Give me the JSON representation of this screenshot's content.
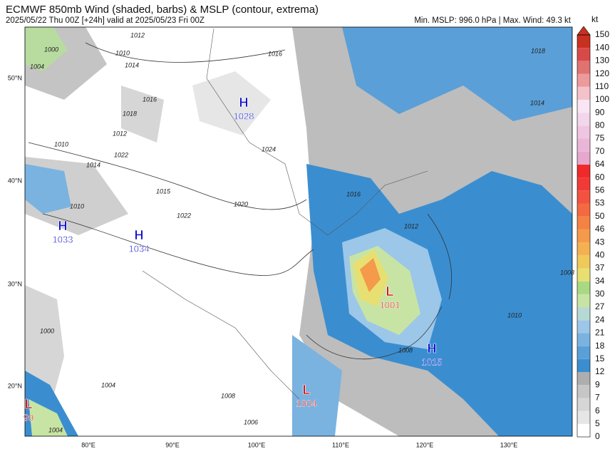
{
  "header": {
    "title": "ECMWF 850mb Wind (shaded, barbs) & MSLP (contour, extrema)",
    "subtitle": "2025/05/22 Thu 00Z [+24h] valid at 2025/05/23 Fri 00Z",
    "stats": "Min. MSLP: 996.0 hPa | Max. Wind: 49.3 kt"
  },
  "colorbar": {
    "unit": "kt",
    "levels": [
      0,
      5,
      6,
      7,
      9,
      12,
      15,
      18,
      21,
      24,
      27,
      30,
      34,
      37,
      40,
      43,
      46,
      50,
      53,
      56,
      60,
      64,
      70,
      75,
      80,
      90,
      100,
      110,
      120,
      130,
      140,
      150
    ],
    "colors": [
      "#ffffff",
      "#e6e6e6",
      "#d6d6d6",
      "#c6c6c6",
      "#aeaeae",
      "#3a8ed0",
      "#5a9fd8",
      "#7ab3e0",
      "#9cc7e8",
      "#b6d9d6",
      "#c8e4a4",
      "#a9d982",
      "#e8df72",
      "#f0c95a",
      "#f4b152",
      "#f49a4a",
      "#f48242",
      "#f46a40",
      "#f45240",
      "#f03a38",
      "#f02a2a",
      "#e6a8cc",
      "#eab6d8",
      "#efc6e2",
      "#f2d6ec",
      "#f8e6f4",
      "#f4c2ca",
      "#ec9a9a",
      "#e07272",
      "#d84a48",
      "#c83020"
    ]
  },
  "axes": {
    "lon_labels": [
      "80°E",
      "90°E",
      "100°E",
      "110°E",
      "120°E",
      "130°E"
    ],
    "lat_labels": [
      "50°N",
      "40°N",
      "30°N",
      "20°N"
    ]
  },
  "centers": [
    {
      "letter": "H",
      "value": "1028"
    },
    {
      "letter": "H",
      "value": "1033"
    },
    {
      "letter": "H",
      "value": "1034"
    },
    {
      "letter": "L",
      "value": "1001"
    },
    {
      "letter": "H",
      "value": "1015"
    },
    {
      "letter": "L",
      "value": "1004"
    },
    {
      "letter": "L",
      "value": "99"
    }
  ],
  "contour_labels": [
    "1000",
    "1004",
    "1010",
    "1012",
    "1014",
    "1016",
    "1018",
    "1012",
    "1010",
    "1014",
    "1022",
    "1024",
    "1016",
    "1018",
    "1014",
    "1015",
    "1010",
    "1022",
    "1020",
    "1016",
    "1012",
    "1008",
    "1000",
    "1004",
    "1008",
    "1006",
    "1004",
    "1010",
    "1008"
  ]
}
